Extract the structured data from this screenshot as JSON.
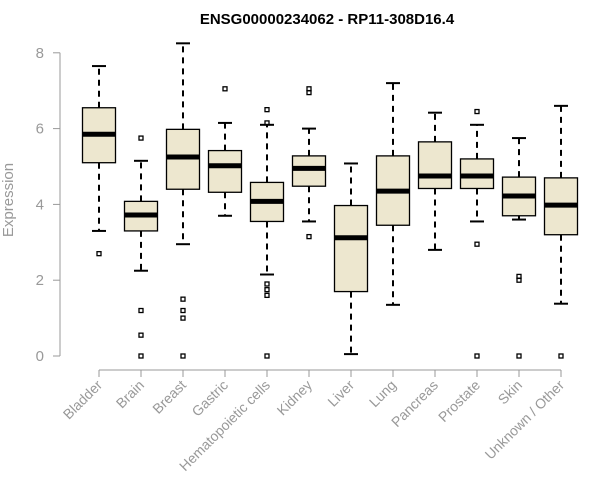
{
  "chart_data": {
    "type": "boxplot",
    "title": "ENSG00000234062 - RP11-308D16.4",
    "xlabel": "",
    "ylabel": "Expression",
    "ylim": [
      0,
      8.3
    ],
    "yticks": [
      0,
      2,
      4,
      6,
      8
    ],
    "box_fill": "#ede7cf",
    "axis_color": "#999999",
    "categories": [
      "Bladder",
      "Brain",
      "Breast",
      "Gastric",
      "Hematopoietic cells",
      "Kidney",
      "Liver",
      "Lung",
      "Pancreas",
      "Prostate",
      "Skin",
      "Unknown / Other"
    ],
    "boxes": [
      {
        "category": "Bladder",
        "whisker_low": 3.3,
        "q1": 5.1,
        "median": 5.85,
        "q3": 6.55,
        "whisker_high": 7.65,
        "outliers": [
          2.7
        ]
      },
      {
        "category": "Brain",
        "whisker_low": 2.25,
        "q1": 3.3,
        "median": 3.72,
        "q3": 4.08,
        "whisker_high": 5.15,
        "outliers": [
          5.75,
          1.2,
          0.55,
          0.0
        ]
      },
      {
        "category": "Breast",
        "whisker_low": 2.95,
        "q1": 4.4,
        "median": 5.25,
        "q3": 5.98,
        "whisker_high": 8.25,
        "outliers": [
          1.5,
          1.2,
          1.0,
          0.0
        ]
      },
      {
        "category": "Gastric",
        "whisker_low": 3.7,
        "q1": 4.32,
        "median": 5.02,
        "q3": 5.42,
        "whisker_high": 6.15,
        "outliers": [
          7.05
        ]
      },
      {
        "category": "Hematopoietic cells",
        "whisker_low": 2.15,
        "q1": 3.55,
        "median": 4.08,
        "q3": 4.58,
        "whisker_high": 6.1,
        "outliers": [
          6.5,
          6.15,
          1.9,
          1.75,
          1.6,
          0.0
        ]
      },
      {
        "category": "Kidney",
        "whisker_low": 3.55,
        "q1": 4.48,
        "median": 4.95,
        "q3": 5.28,
        "whisker_high": 6.0,
        "outliers": [
          7.05,
          6.95,
          3.15
        ]
      },
      {
        "category": "Liver",
        "whisker_low": 0.05,
        "q1": 1.7,
        "median": 3.12,
        "q3": 3.97,
        "whisker_high": 5.08,
        "outliers": []
      },
      {
        "category": "Lung",
        "whisker_low": 1.35,
        "q1": 3.45,
        "median": 4.35,
        "q3": 5.28,
        "whisker_high": 7.2,
        "outliers": []
      },
      {
        "category": "Pancreas",
        "whisker_low": 2.8,
        "q1": 4.42,
        "median": 4.75,
        "q3": 5.65,
        "whisker_high": 6.42,
        "outliers": []
      },
      {
        "category": "Prostate",
        "whisker_low": 3.55,
        "q1": 4.42,
        "median": 4.75,
        "q3": 5.2,
        "whisker_high": 6.1,
        "outliers": [
          6.45,
          2.95,
          0.0
        ]
      },
      {
        "category": "Skin",
        "whisker_low": 3.6,
        "q1": 3.7,
        "median": 4.22,
        "q3": 4.72,
        "whisker_high": 5.75,
        "outliers": [
          2.1,
          2.0,
          0.0
        ]
      },
      {
        "category": "Unknown / Other",
        "whisker_low": 1.38,
        "q1": 3.2,
        "median": 3.98,
        "q3": 4.7,
        "whisker_high": 6.6,
        "outliers": [
          0.0
        ]
      }
    ]
  }
}
